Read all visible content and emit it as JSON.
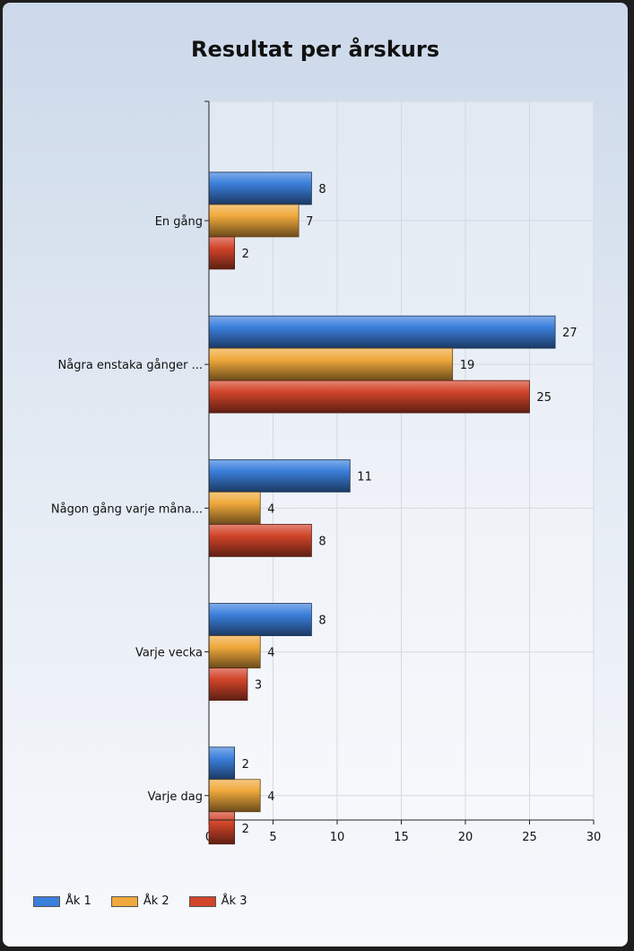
{
  "chart_data": {
    "type": "bar",
    "orientation": "horizontal",
    "title": "Resultat per årskurs",
    "categories": [
      "En gång",
      "Några enstaka gånger ...",
      "Någon gång varje måna...",
      "Varje vecka",
      "Varje dag"
    ],
    "series": [
      {
        "name": "Åk 1",
        "color": "#3b7fdc",
        "values": [
          8,
          27,
          11,
          8,
          2
        ]
      },
      {
        "name": "Åk 2",
        "color": "#f0a93c",
        "values": [
          7,
          19,
          4,
          4,
          4
        ]
      },
      {
        "name": "Åk 3",
        "color": "#d2452a",
        "values": [
          2,
          25,
          8,
          3,
          2
        ]
      }
    ],
    "xlim": [
      0,
      30
    ],
    "xticks": [
      0,
      5,
      10,
      15,
      20,
      25,
      30
    ],
    "grid": true,
    "legend_position": "bottom-left"
  }
}
